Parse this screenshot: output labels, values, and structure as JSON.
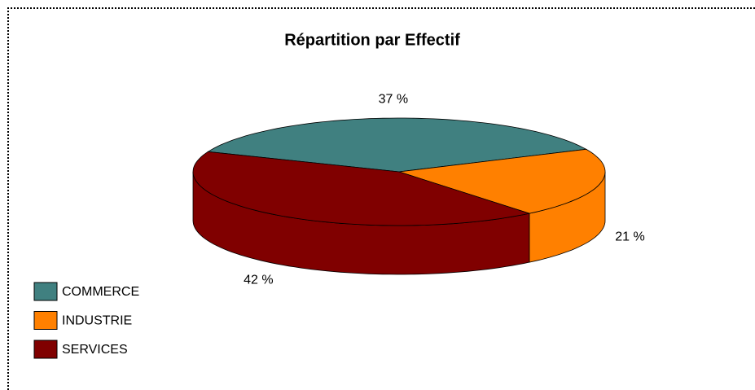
{
  "chart_data": {
    "type": "pie3d",
    "title": "Répartition par Effectif",
    "categories": [
      "COMMERCE",
      "INDUSTRIE",
      "SERVICES"
    ],
    "values": [
      37,
      21,
      42
    ],
    "value_labels": [
      "37 %",
      "21 %",
      "42 %"
    ],
    "colors": [
      "#408080",
      "#ff8000",
      "#800000"
    ]
  }
}
